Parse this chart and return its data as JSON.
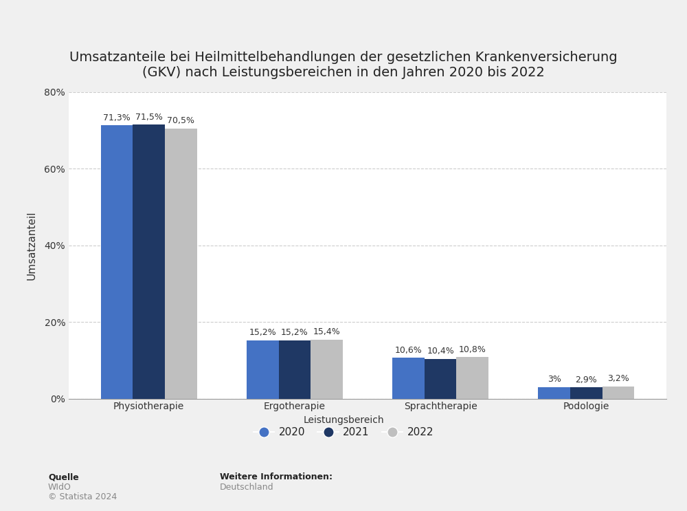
{
  "title": "Umsatzanteile bei Heilmittelbehandlungen der gesetzlichen Krankenversicherung\n(GKV) nach Leistungsbereichen in den Jahren 2020 bis 2022",
  "categories": [
    "Physiotherapie",
    "Ergotherapie",
    "Sprachtherapie",
    "Podologie"
  ],
  "years": [
    "2020",
    "2021",
    "2022"
  ],
  "values": {
    "2020": [
      71.3,
      15.2,
      10.6,
      3.0
    ],
    "2021": [
      71.5,
      15.2,
      10.4,
      2.9
    ],
    "2022": [
      70.5,
      15.4,
      10.8,
      3.2
    ]
  },
  "labels": {
    "2020": [
      "71,3%",
      "15,2%",
      "10,6%",
      "3%"
    ],
    "2021": [
      "71,5%",
      "15,2%",
      "10,4%",
      "2,9%"
    ],
    "2022": [
      "70,5%",
      "15,4%",
      "10,8%",
      "3,2%"
    ]
  },
  "colors": {
    "2020": "#4472C4",
    "2021": "#1F3864",
    "2022": "#BFBFBF"
  },
  "ylabel": "Umsatzanteil",
  "ylim": [
    0,
    80
  ],
  "yticks": [
    0,
    20,
    40,
    60,
    80
  ],
  "ytick_labels": [
    "0%",
    "20%",
    "40%",
    "60%",
    "80%"
  ],
  "legend_title": "Leistungsbereich",
  "background_color": "#f0f0f0",
  "plot_bg_color": "#ffffff",
  "footer_source_label": "Quelle",
  "footer_source": "WIdO",
  "footer_copyright": "© Statista 2024",
  "footer_info_label": "Weitere Informationen:",
  "footer_info": "Deutschland",
  "title_fontsize": 14,
  "axis_label_fontsize": 11,
  "tick_fontsize": 10,
  "bar_label_fontsize": 9,
  "legend_fontsize": 11
}
